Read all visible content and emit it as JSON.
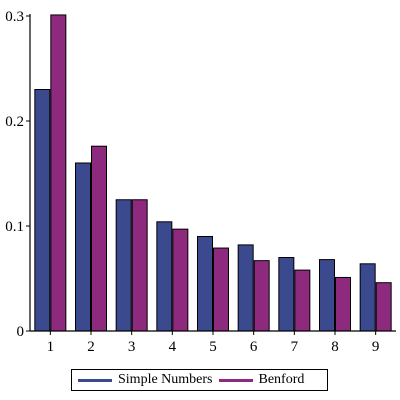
{
  "chart_data": {
    "type": "bar",
    "categories": [
      "1",
      "2",
      "3",
      "4",
      "5",
      "6",
      "7",
      "8",
      "9"
    ],
    "series": [
      {
        "name": "Simple Numbers",
        "color": "#3b4a8f",
        "values": [
          0.23,
          0.16,
          0.125,
          0.104,
          0.09,
          0.082,
          0.07,
          0.068,
          0.064
        ]
      },
      {
        "name": "Benford",
        "color": "#8e2a7e",
        "values": [
          0.301,
          0.176,
          0.125,
          0.097,
          0.079,
          0.067,
          0.058,
          0.051,
          0.046
        ]
      }
    ],
    "ylim": [
      0,
      0.3
    ],
    "yticks": [
      "0",
      "0.1",
      "0.2",
      "0.3"
    ],
    "title": "",
    "xlabel": "",
    "ylabel": "",
    "legend_position": "bottom",
    "grid": false
  }
}
